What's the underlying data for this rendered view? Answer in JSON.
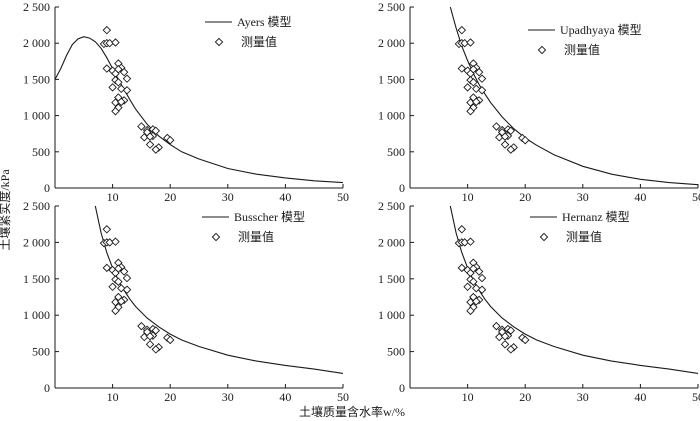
{
  "figure": {
    "ylabel": "土壤紧实度/kPa",
    "xlabel": "土壤质量含水率w/%"
  },
  "chart_data": [
    {
      "type": "scatter",
      "panel": "top-left",
      "xlim": [
        0,
        50
      ],
      "ylim": [
        0,
        2500
      ],
      "xticks": [
        10,
        20,
        30,
        40,
        50
      ],
      "yticks": [
        0,
        500,
        1000,
        1500,
        2000,
        2500
      ],
      "ytick_labels": [
        "0",
        "500",
        "1 000",
        "1 500",
        "2 000",
        "2 500"
      ],
      "legend_position": "top-right",
      "series": [
        {
          "name": "Ayers 模型",
          "kind": "line",
          "x": [
            0,
            1,
            2,
            3,
            4,
            5,
            6,
            7,
            8,
            9,
            10,
            11,
            12,
            13,
            14,
            16,
            18,
            20,
            22,
            25,
            30,
            35,
            40,
            45,
            50
          ],
          "y": [
            1500,
            1650,
            1830,
            1980,
            2060,
            2090,
            2070,
            2020,
            1930,
            1800,
            1650,
            1500,
            1360,
            1220,
            1090,
            880,
            720,
            600,
            500,
            400,
            270,
            190,
            140,
            100,
            75
          ]
        },
        {
          "name": "测量值",
          "kind": "scatter",
          "x": [
            8.5,
            9.0,
            9.0,
            9.5,
            9.0,
            10.5,
            10.0,
            10.5,
            11.0,
            11.5,
            11.0,
            12.0,
            12.5,
            10.5,
            11.0,
            10.0,
            11.5,
            12.5,
            11.0,
            12.0,
            10.5,
            11.5,
            11.0,
            10.5,
            15.0,
            16.0,
            15.5,
            16.5,
            17.0,
            17.5,
            17.0,
            16.5,
            18.0,
            17.5,
            19.5,
            20.0,
            16.0,
            16.5
          ],
          "y": [
            1990,
            2180,
            2000,
            2000,
            1650,
            2010,
            1620,
            1580,
            1720,
            1660,
            1640,
            1600,
            1510,
            1490,
            1460,
            1390,
            1370,
            1350,
            1250,
            1210,
            1180,
            1190,
            1110,
            1060,
            850,
            800,
            700,
            750,
            810,
            790,
            720,
            600,
            560,
            530,
            690,
            660,
            770,
            710
          ]
        }
      ]
    },
    {
      "type": "scatter",
      "panel": "top-right",
      "xlim": [
        0,
        50
      ],
      "ylim": [
        0,
        2500
      ],
      "xticks": [
        10,
        20,
        30,
        40,
        50
      ],
      "yticks": [
        0,
        500,
        1000,
        1500,
        2000,
        2500
      ],
      "ytick_labels": [
        "0",
        "500",
        "1 000",
        "1 500",
        "2 000",
        "2 500"
      ],
      "legend_position": "top-right",
      "series": [
        {
          "name": "Upadhyaya 模型",
          "kind": "line",
          "x": [
            7,
            8,
            9,
            10,
            11,
            12,
            13,
            14,
            16,
            18,
            20,
            22,
            25,
            30,
            35,
            40,
            45,
            50
          ],
          "y": [
            2520,
            2210,
            1960,
            1760,
            1580,
            1430,
            1300,
            1180,
            980,
            820,
            690,
            590,
            460,
            300,
            190,
            120,
            75,
            45
          ]
        },
        {
          "name": "测量值",
          "kind": "scatter",
          "x": [
            8.5,
            9.0,
            9.0,
            9.5,
            9.0,
            10.5,
            10.0,
            10.5,
            11.0,
            11.5,
            11.0,
            12.0,
            12.5,
            10.5,
            11.0,
            10.0,
            11.5,
            12.5,
            11.0,
            12.0,
            10.5,
            11.5,
            11.0,
            10.5,
            15.0,
            16.0,
            15.5,
            16.5,
            17.0,
            17.5,
            17.0,
            16.5,
            18.0,
            17.5,
            19.5,
            20.0,
            16.0,
            16.5
          ],
          "y": [
            1990,
            2180,
            2000,
            2000,
            1650,
            2010,
            1620,
            1580,
            1720,
            1660,
            1640,
            1600,
            1510,
            1490,
            1460,
            1390,
            1370,
            1350,
            1250,
            1210,
            1180,
            1190,
            1110,
            1060,
            850,
            800,
            700,
            750,
            810,
            790,
            720,
            600,
            560,
            530,
            690,
            660,
            770,
            710
          ]
        }
      ]
    },
    {
      "type": "scatter",
      "panel": "bottom-left",
      "xlim": [
        0,
        50
      ],
      "ylim": [
        0,
        2500
      ],
      "xticks": [
        10,
        20,
        30,
        40,
        50
      ],
      "yticks": [
        0,
        500,
        1000,
        1500,
        2000,
        2500
      ],
      "ytick_labels": [
        "0",
        "500",
        "1 000",
        "1 500",
        "2 000",
        "2 500"
      ],
      "legend_position": "top-right",
      "series": [
        {
          "name": "Busscher 模型",
          "kind": "line",
          "x": [
            7,
            8,
            9,
            10,
            11,
            12,
            13,
            14,
            16,
            18,
            20,
            22,
            25,
            30,
            35,
            40,
            45,
            50
          ],
          "y": [
            2500,
            2130,
            1860,
            1650,
            1480,
            1340,
            1220,
            1120,
            960,
            840,
            740,
            660,
            570,
            450,
            370,
            310,
            260,
            200
          ]
        },
        {
          "name": "测量值",
          "kind": "scatter",
          "x": [
            8.5,
            9.0,
            9.0,
            9.5,
            9.0,
            10.5,
            10.0,
            10.5,
            11.0,
            11.5,
            11.0,
            12.0,
            12.5,
            10.5,
            11.0,
            10.0,
            11.5,
            12.5,
            11.0,
            12.0,
            10.5,
            11.5,
            11.0,
            10.5,
            15.0,
            16.0,
            15.5,
            16.5,
            17.0,
            17.5,
            17.0,
            16.5,
            18.0,
            17.5,
            19.5,
            20.0,
            16.0,
            16.5
          ],
          "y": [
            1990,
            2180,
            2000,
            2000,
            1650,
            2010,
            1620,
            1580,
            1720,
            1660,
            1640,
            1600,
            1510,
            1490,
            1460,
            1390,
            1370,
            1350,
            1250,
            1210,
            1180,
            1190,
            1110,
            1060,
            850,
            800,
            700,
            750,
            810,
            790,
            720,
            600,
            560,
            530,
            690,
            660,
            770,
            710
          ]
        }
      ]
    },
    {
      "type": "scatter",
      "panel": "bottom-right",
      "xlim": [
        0,
        50
      ],
      "ylim": [
        0,
        2500
      ],
      "xticks": [
        10,
        20,
        30,
        40,
        50
      ],
      "yticks": [
        0,
        500,
        1000,
        1500,
        2000,
        2500
      ],
      "ytick_labels": [
        "0",
        "500",
        "1 000",
        "1 500",
        "2 000",
        "2 500"
      ],
      "legend_position": "top-right",
      "series": [
        {
          "name": "Hernanz 模型",
          "kind": "line",
          "x": [
            7,
            8,
            9,
            10,
            11,
            12,
            13,
            14,
            16,
            18,
            20,
            22,
            25,
            30,
            35,
            40,
            45,
            50
          ],
          "y": [
            2500,
            2130,
            1860,
            1650,
            1480,
            1340,
            1220,
            1120,
            960,
            840,
            740,
            660,
            570,
            450,
            370,
            310,
            260,
            200
          ]
        },
        {
          "name": "测量值",
          "kind": "scatter",
          "x": [
            8.5,
            9.0,
            9.0,
            9.5,
            9.0,
            10.5,
            10.0,
            10.5,
            11.0,
            11.5,
            11.0,
            12.0,
            12.5,
            10.5,
            11.0,
            10.0,
            11.5,
            12.5,
            11.0,
            12.0,
            10.5,
            11.5,
            11.0,
            10.5,
            15.0,
            16.0,
            15.5,
            16.5,
            17.0,
            17.5,
            17.0,
            16.5,
            18.0,
            17.5,
            19.5,
            20.0,
            16.0,
            16.5
          ],
          "y": [
            1990,
            2180,
            2000,
            2000,
            1650,
            2010,
            1620,
            1580,
            1720,
            1660,
            1640,
            1600,
            1510,
            1490,
            1460,
            1390,
            1370,
            1350,
            1250,
            1210,
            1180,
            1190,
            1110,
            1060,
            850,
            800,
            700,
            750,
            810,
            790,
            720,
            600,
            560,
            530,
            690,
            660,
            770,
            710
          ]
        }
      ]
    }
  ]
}
